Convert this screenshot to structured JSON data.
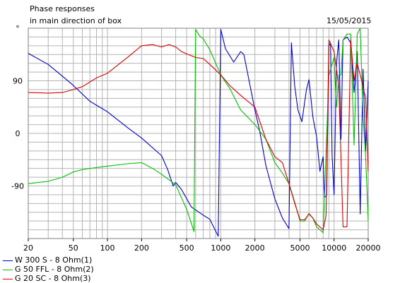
{
  "chart_data": {
    "type": "line",
    "title": "Phase responses",
    "subtitle": "in main direction of box",
    "date": "15/05/2015",
    "xscale": "log",
    "xlim": [
      20,
      20000
    ],
    "ylim": [
      -180,
      180
    ],
    "grid": true,
    "legend_position": "bottom-left",
    "x_ticks": [
      "20",
      "50",
      "100",
      "200",
      "500",
      "1000",
      "2000",
      "5000",
      "10000",
      "20000"
    ],
    "y_ticks": [
      {
        "label": "°",
        "value": 180
      },
      {
        "label": "90",
        "value": 90
      },
      {
        "label": "0",
        "value": 0
      },
      {
        "label": "-90",
        "value": -90
      }
    ],
    "series": [
      {
        "name": "W 300 S - 8 Ohm(1)",
        "color": "#0000cc",
        "points": [
          [
            20,
            137
          ],
          [
            30,
            118
          ],
          [
            40,
            98
          ],
          [
            50,
            82
          ],
          [
            70,
            55
          ],
          [
            100,
            37
          ],
          [
            150,
            10
          ],
          [
            200,
            -8
          ],
          [
            300,
            -38
          ],
          [
            340,
            -62
          ],
          [
            380,
            -90
          ],
          [
            400,
            -84
          ],
          [
            450,
            -96
          ],
          [
            550,
            -126
          ],
          [
            700,
            -140
          ],
          [
            800,
            -147
          ],
          [
            950,
            -176
          ],
          [
            1000,
            178
          ],
          [
            1100,
            145
          ],
          [
            1300,
            122
          ],
          [
            1500,
            140
          ],
          [
            1600,
            135
          ],
          [
            2000,
            40
          ],
          [
            2200,
            5
          ],
          [
            2500,
            -55
          ],
          [
            3000,
            -112
          ],
          [
            3500,
            -145
          ],
          [
            4000,
            -163
          ],
          [
            4200,
            155
          ],
          [
            4500,
            80
          ],
          [
            4800,
            40
          ],
          [
            5200,
            20
          ],
          [
            5700,
            75
          ],
          [
            6000,
            92
          ],
          [
            6500,
            28
          ],
          [
            7000,
            -5
          ],
          [
            7500,
            -65
          ],
          [
            8000,
            -40
          ],
          [
            8200,
            -110
          ],
          [
            8600,
            -106
          ],
          [
            9000,
            150
          ],
          [
            9300,
            155
          ],
          [
            9600,
            -38
          ],
          [
            10000,
            -105
          ],
          [
            10500,
            120
          ],
          [
            11000,
            160
          ],
          [
            11500,
            -10
          ],
          [
            12000,
            160
          ],
          [
            13000,
            165
          ],
          [
            14000,
            155
          ],
          [
            15000,
            70
          ],
          [
            16000,
            140
          ],
          [
            17000,
            -138
          ],
          [
            18000,
            110
          ],
          [
            19000,
            -30
          ],
          [
            20000,
            90
          ]
        ]
      },
      {
        "name": "G 50 FFL - 8 Ohm(2)",
        "color": "#00c000",
        "points": [
          [
            20,
            -86
          ],
          [
            30,
            -82
          ],
          [
            40,
            -75
          ],
          [
            50,
            -66
          ],
          [
            60,
            -62
          ],
          [
            70,
            -60
          ],
          [
            100,
            -56
          ],
          [
            150,
            -52
          ],
          [
            200,
            -50
          ],
          [
            250,
            -60
          ],
          [
            300,
            -70
          ],
          [
            400,
            -88
          ],
          [
            500,
            -130
          ],
          [
            580,
            -168
          ],
          [
            600,
            178
          ],
          [
            650,
            167
          ],
          [
            700,
            162
          ],
          [
            800,
            143
          ],
          [
            1000,
            100
          ],
          [
            1200,
            77
          ],
          [
            1500,
            40
          ],
          [
            2000,
            15
          ],
          [
            2500,
            -10
          ],
          [
            3000,
            -50
          ],
          [
            3500,
            -68
          ],
          [
            4000,
            -86
          ],
          [
            4500,
            -118
          ],
          [
            5000,
            -150
          ],
          [
            5500,
            -150
          ],
          [
            6000,
            -137
          ],
          [
            6500,
            -145
          ],
          [
            7000,
            -160
          ],
          [
            8000,
            -170
          ],
          [
            9000,
            100
          ],
          [
            10000,
            130
          ],
          [
            10500,
            45
          ],
          [
            11000,
            100
          ],
          [
            11500,
            100
          ],
          [
            12000,
            160
          ],
          [
            13000,
            170
          ],
          [
            14000,
            170
          ],
          [
            15000,
            -20
          ],
          [
            16000,
            170
          ],
          [
            17000,
            180
          ],
          [
            18000,
            30
          ],
          [
            19000,
            -40
          ],
          [
            20000,
            -150
          ]
        ]
      },
      {
        "name": "G 20 SC - 8 Ohm(3)",
        "color": "#dd0000",
        "points": [
          [
            20,
            70
          ],
          [
            30,
            69
          ],
          [
            40,
            70
          ],
          [
            50,
            75
          ],
          [
            60,
            80
          ],
          [
            80,
            95
          ],
          [
            100,
            103
          ],
          [
            150,
            130
          ],
          [
            200,
            150
          ],
          [
            250,
            152
          ],
          [
            300,
            148
          ],
          [
            350,
            152
          ],
          [
            400,
            148
          ],
          [
            450,
            140
          ],
          [
            500,
            136
          ],
          [
            600,
            130
          ],
          [
            700,
            128
          ],
          [
            800,
            118
          ],
          [
            1000,
            100
          ],
          [
            1200,
            82
          ],
          [
            1500,
            65
          ],
          [
            2000,
            45
          ],
          [
            2500,
            -10
          ],
          [
            3000,
            -40
          ],
          [
            3500,
            -50
          ],
          [
            4000,
            -86
          ],
          [
            4500,
            -120
          ],
          [
            5000,
            -148
          ],
          [
            5500,
            -148
          ],
          [
            6000,
            -138
          ],
          [
            6500,
            -145
          ],
          [
            7000,
            -155
          ],
          [
            8000,
            -165
          ],
          [
            8500,
            -140
          ],
          [
            9000,
            160
          ],
          [
            10000,
            140
          ],
          [
            11000,
            80
          ],
          [
            12000,
            -160
          ],
          [
            13000,
            -160
          ],
          [
            14000,
            160
          ],
          [
            15000,
            90
          ],
          [
            16000,
            120
          ],
          [
            17000,
            100
          ],
          [
            18000,
            80
          ],
          [
            19000,
            60
          ],
          [
            20000,
            -65
          ]
        ]
      }
    ]
  }
}
